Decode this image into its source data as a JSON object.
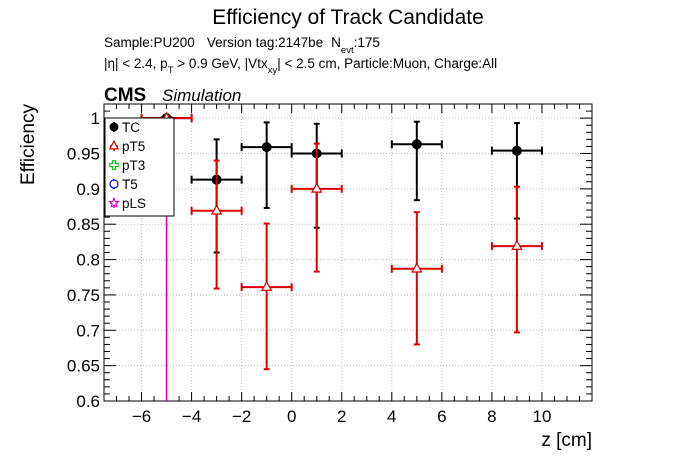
{
  "chart_data": {
    "type": "scatter",
    "title": "Efficiency of Track Candidate",
    "info_line1": {
      "sample": "Sample:PU200",
      "version": "Version tag:2147be",
      "nevt_prefix": "N",
      "nevt_sub": "evt",
      "nevt_value": ":175"
    },
    "info_line2": {
      "eta": "|η| < 2.4, p",
      "pt_sub": "T",
      "pt_rest": " > 0.9 GeV, |Vtx",
      "vtx_sub": "xy",
      "vtx_rest": "| < 2.5 cm, Particle:Muon, Charge:All"
    },
    "cms_label": "CMS",
    "simulation_label": "Simulation",
    "xlabel": "z [cm]",
    "ylabel": "Efficiency",
    "xlim": [
      -7.5,
      12.0
    ],
    "ylim": [
      0.6,
      1.02
    ],
    "x_ticks": [
      -6,
      -4,
      -2,
      0,
      2,
      4,
      6,
      8,
      10
    ],
    "y_ticks": [
      0.6,
      0.65,
      0.7,
      0.75,
      0.8,
      0.85,
      0.9,
      0.95,
      1
    ],
    "y_tick_labels": [
      "0.6",
      "0.65",
      "0.7",
      "0.75",
      "0.8",
      "0.85",
      "0.9",
      "0.95",
      "1"
    ],
    "grid": true,
    "legend_position": "top-left",
    "series": [
      {
        "name": "TC",
        "color": "#000000",
        "marker": "filled-circle",
        "points": [
          {
            "x": -5,
            "xlo": -6,
            "xhi": -4,
            "y": 1.0,
            "ylo": 1.0,
            "yhi": 1.0
          },
          {
            "x": -3,
            "xlo": -4,
            "xhi": -2,
            "y": 0.913,
            "ylo": 0.81,
            "yhi": 0.97
          },
          {
            "x": -1,
            "xlo": -2,
            "xhi": 0,
            "y": 0.959,
            "ylo": 0.873,
            "yhi": 0.994
          },
          {
            "x": 1,
            "xlo": 0,
            "xhi": 2,
            "y": 0.95,
            "ylo": 0.845,
            "yhi": 0.992
          },
          {
            "x": 5,
            "xlo": 4,
            "xhi": 6,
            "y": 0.963,
            "ylo": 0.884,
            "yhi": 0.995
          },
          {
            "x": 9,
            "xlo": 8,
            "xhi": 10,
            "y": 0.954,
            "ylo": 0.858,
            "yhi": 0.993
          }
        ]
      },
      {
        "name": "pT5",
        "color": "#dd0000",
        "marker": "open-triangle",
        "points": [
          {
            "x": -5,
            "xlo": -6,
            "xhi": -4,
            "y": 1.0,
            "ylo": 1.0,
            "yhi": 1.0
          },
          {
            "x": -3,
            "xlo": -4,
            "xhi": -2,
            "y": 0.869,
            "ylo": 0.759,
            "yhi": 0.94
          },
          {
            "x": -1,
            "xlo": -2,
            "xhi": 0,
            "y": 0.761,
            "ylo": 0.645,
            "yhi": 0.851
          },
          {
            "x": 1,
            "xlo": 0,
            "xhi": 2,
            "y": 0.9,
            "ylo": 0.783,
            "yhi": 0.964
          },
          {
            "x": 5,
            "xlo": 4,
            "xhi": 6,
            "y": 0.787,
            "ylo": 0.68,
            "yhi": 0.867
          },
          {
            "x": 9,
            "xlo": 8,
            "xhi": 10,
            "y": 0.819,
            "ylo": 0.697,
            "yhi": 0.903
          }
        ]
      },
      {
        "name": "pT3",
        "color": "#00cc00",
        "marker": "open-cross",
        "points": []
      },
      {
        "name": "T5",
        "color": "#0000cc",
        "marker": "open-circle",
        "points": []
      },
      {
        "name": "pLS",
        "color": "#cc00cc",
        "marker": "open-star",
        "points": [
          {
            "x": -5,
            "xlo": -6,
            "xhi": -4,
            "y": 1.0,
            "ylo": 0.0,
            "yhi": 1.0
          }
        ]
      }
    ]
  }
}
